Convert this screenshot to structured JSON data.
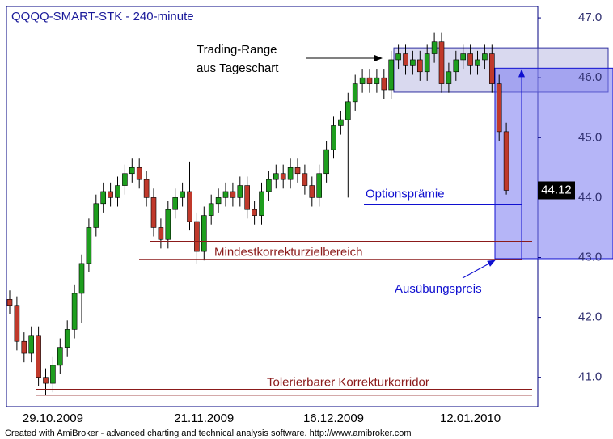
{
  "chart_data": {
    "type": "candlestick",
    "title": "QQQQ-SMART-STK - 240-minute",
    "categories": [
      null,
      null,
      null,
      null,
      null,
      null,
      "29.10.2009",
      null,
      null,
      null,
      null,
      null,
      null,
      null,
      null,
      null,
      null,
      null,
      null,
      null,
      null,
      null,
      null,
      null,
      null,
      null,
      null,
      "21.11.2009",
      null,
      null,
      null,
      null,
      null,
      null,
      null,
      null,
      null,
      null,
      null,
      null,
      null,
      null,
      null,
      null,
      null,
      "16.12.2009",
      null,
      null,
      null,
      null,
      null,
      null,
      null,
      null,
      null,
      null,
      null,
      null,
      null,
      null,
      null,
      null,
      null,
      null,
      "12.01.2010",
      null,
      null,
      null,
      null,
      null
    ],
    "open": [
      42.3,
      42.2,
      41.6,
      41.4,
      41.7,
      41.0,
      40.9,
      41.2,
      41.5,
      41.8,
      42.4,
      42.9,
      43.5,
      43.9,
      44.1,
      44.0,
      44.2,
      44.4,
      44.5,
      44.3,
      44.0,
      43.5,
      43.3,
      43.8,
      44.0,
      44.1,
      43.6,
      43.1,
      43.7,
      43.9,
      44.0,
      44.1,
      44.0,
      44.2,
      43.8,
      43.7,
      44.1,
      44.3,
      44.4,
      44.3,
      44.5,
      44.4,
      44.2,
      44.0,
      44.4,
      44.8,
      45.2,
      45.3,
      45.6,
      45.9,
      46.0,
      45.9,
      46.0,
      45.8,
      46.3,
      46.4,
      46.2,
      46.3,
      46.1,
      46.4,
      46.6,
      45.9,
      46.1,
      46.3,
      46.4,
      46.2,
      46.3,
      46.4,
      45.9,
      45.1
    ],
    "high": [
      42.45,
      42.35,
      41.75,
      41.85,
      41.85,
      41.15,
      41.35,
      41.65,
      41.95,
      42.55,
      43.05,
      43.65,
      44.05,
      44.25,
      44.25,
      44.35,
      44.55,
      44.65,
      44.65,
      44.45,
      44.15,
      43.65,
      43.95,
      44.15,
      44.25,
      44.6,
      43.75,
      43.85,
      44.05,
      44.15,
      44.25,
      44.25,
      44.35,
      44.35,
      43.95,
      44.25,
      44.45,
      44.55,
      44.55,
      44.65,
      44.65,
      44.55,
      44.35,
      44.55,
      44.95,
      45.35,
      45.45,
      45.75,
      46.05,
      46.15,
      46.15,
      46.15,
      46.15,
      46.45,
      46.55,
      46.55,
      46.45,
      46.45,
      46.55,
      46.75,
      46.75,
      46.25,
      46.45,
      46.55,
      46.55,
      46.45,
      46.55,
      46.55,
      46.05,
      45.25
    ],
    "low": [
      42.05,
      41.45,
      41.25,
      41.25,
      40.85,
      40.7,
      40.75,
      41.05,
      41.35,
      41.65,
      41.9,
      42.75,
      43.35,
      43.75,
      43.85,
      43.85,
      44.05,
      44.25,
      44.15,
      43.85,
      43.35,
      43.15,
      43.15,
      43.65,
      43.85,
      43.45,
      42.9,
      42.95,
      43.55,
      43.75,
      43.85,
      43.85,
      43.85,
      43.65,
      43.55,
      43.55,
      43.95,
      44.15,
      44.15,
      44.15,
      44.25,
      44.05,
      43.85,
      43.85,
      44.25,
      44.65,
      45.05,
      44.0,
      45.45,
      45.75,
      45.75,
      45.75,
      45.65,
      45.65,
      46.15,
      46.05,
      46.05,
      45.95,
      45.95,
      46.25,
      45.75,
      45.75,
      45.95,
      46.15,
      46.05,
      46.05,
      46.15,
      45.75,
      44.95,
      44.05
    ],
    "close": [
      42.2,
      41.6,
      41.4,
      41.7,
      41.0,
      40.9,
      41.2,
      41.5,
      41.8,
      42.4,
      42.9,
      43.5,
      43.9,
      44.1,
      44.0,
      44.2,
      44.4,
      44.5,
      44.3,
      44.0,
      43.5,
      43.3,
      43.8,
      44.0,
      44.1,
      43.6,
      43.1,
      43.7,
      43.9,
      44.0,
      44.1,
      44.0,
      44.2,
      43.8,
      43.7,
      44.1,
      44.3,
      44.4,
      44.3,
      44.5,
      44.4,
      44.2,
      44.0,
      44.4,
      44.8,
      45.2,
      45.3,
      45.6,
      45.9,
      46.0,
      45.9,
      46.0,
      45.8,
      46.3,
      46.4,
      46.2,
      46.3,
      46.1,
      46.4,
      46.6,
      45.9,
      46.1,
      46.3,
      46.4,
      46.2,
      46.3,
      46.4,
      45.9,
      45.1,
      44.12
    ],
    "up_color": "#1e9e1e",
    "down_color": "#c0392b",
    "ylim": [
      40.51,
      47.19
    ],
    "yticks": [
      {
        "value": 41,
        "label": "41.0"
      },
      {
        "value": 42,
        "label": "42.0"
      },
      {
        "value": 43,
        "label": "43.0"
      },
      {
        "value": 44,
        "label": "44.0"
      },
      {
        "value": 45,
        "label": "45.0"
      },
      {
        "value": 46,
        "label": "46.0"
      },
      {
        "value": 47,
        "label": "47.0"
      }
    ],
    "last_price": 44.12,
    "annotations": {
      "trading_range": {
        "label": [
          "Trading-Range",
          "aus Tageschart"
        ],
        "top": 46.5,
        "bottom": 45.76
      },
      "strike_box": {
        "top": 46.16,
        "bottom": 42.98
      },
      "min_correction": {
        "label": "Mindestkorrekturzielbereich",
        "levels": [
          43.27,
          42.97
        ]
      },
      "tolerance": {
        "label": "Tolerierbarer Korrekturkorridor",
        "levels": [
          40.8,
          40.7
        ]
      },
      "premium": {
        "label": "Optionsprämie",
        "level": 43.89
      },
      "strike": {
        "label": "Ausübungspreis"
      }
    },
    "footer": "Created with AmiBroker - advanced charting and technical analysis software. http://www.amibroker.com"
  }
}
